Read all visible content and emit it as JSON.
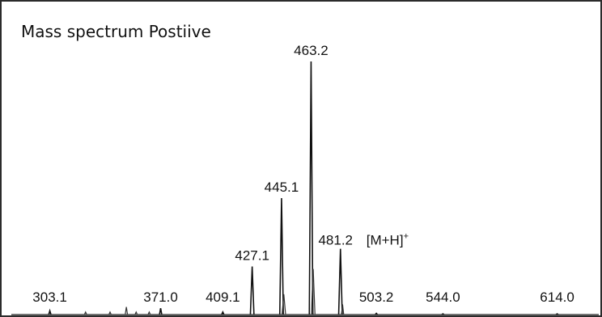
{
  "chart_data": {
    "type": "line",
    "title": "Mass spectrum Postiive",
    "xlabel": "",
    "ylabel": "",
    "xlim": [
      280,
      640
    ],
    "ylim": [
      0,
      100
    ],
    "grid": false,
    "legend": "none",
    "peaks": [
      {
        "mz": 303.1,
        "intensity": 1.5,
        "label": "303.1"
      },
      {
        "mz": 371.0,
        "intensity": 2.5,
        "label": "371.0"
      },
      {
        "mz": 409.1,
        "intensity": 1,
        "label": "409.1"
      },
      {
        "mz": 427.1,
        "intensity": 19,
        "label": "427.1"
      },
      {
        "mz": 445.1,
        "intensity": 46,
        "label": "445.1"
      },
      {
        "mz": 463.2,
        "intensity": 100,
        "label": "463.2"
      },
      {
        "mz": 481.2,
        "intensity": 26,
        "label": "481.2"
      },
      {
        "mz": 503.2,
        "intensity": 0.5,
        "label": "503.2"
      },
      {
        "mz": 544.0,
        "intensity": 0.3,
        "label": "544.0"
      },
      {
        "mz": 614.0,
        "intensity": 0.3,
        "label": "614.0"
      }
    ],
    "minor_peaks": [
      {
        "mz": 325.0,
        "intensity": 1
      },
      {
        "mz": 340.0,
        "intensity": 1
      },
      {
        "mz": 350.0,
        "intensity": 3
      },
      {
        "mz": 356.0,
        "intensity": 1
      },
      {
        "mz": 364.0,
        "intensity": 1
      },
      {
        "mz": 446.5,
        "intensity": 8
      },
      {
        "mz": 464.5,
        "intensity": 18
      },
      {
        "mz": 482.5,
        "intensity": 4
      }
    ],
    "annotations": [
      {
        "text": "[M+H]",
        "sup": "+",
        "for_peak": "481.2"
      }
    ]
  }
}
